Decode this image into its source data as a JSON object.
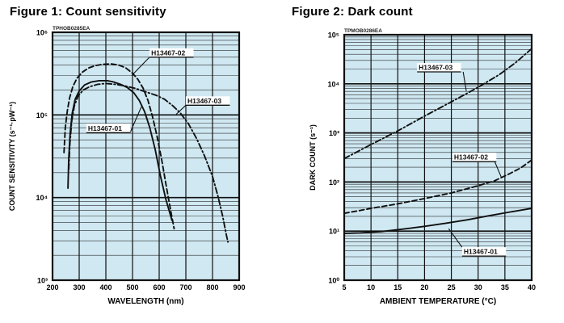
{
  "chart_data": [
    {
      "type": "line",
      "title": "Figure 1: Count sensitivity",
      "code": "TPHOB0285EA",
      "xlabel": "WAVELENGTH (nm)",
      "ylabel": "COUNT SENSITIVITY (s⁻¹·pW⁻¹)",
      "x_range": [
        200,
        900
      ],
      "x_ticks": [
        200,
        300,
        400,
        500,
        600,
        700,
        800,
        900
      ],
      "y_log_range": [
        3,
        6
      ],
      "y_tick_labels": [
        "10³",
        "10⁴",
        "10⁵",
        "10⁶"
      ],
      "grid": "log-minor",
      "bg_color": "#cfe8f2",
      "line_color": "#111111",
      "series": [
        {
          "name": "H13467-01",
          "style": "solid",
          "points": [
            [
              258,
              13000
            ],
            [
              261,
              30000
            ],
            [
              266,
              60000
            ],
            [
              274,
              105000
            ],
            [
              285,
              155000
            ],
            [
              300,
              195000
            ],
            [
              320,
              230000
            ],
            [
              345,
              250000
            ],
            [
              375,
              260000
            ],
            [
              405,
              260000
            ],
            [
              430,
              250000
            ],
            [
              455,
              235000
            ],
            [
              480,
              215000
            ],
            [
              505,
              185000
            ],
            [
              525,
              150000
            ],
            [
              545,
              110000
            ],
            [
              565,
              70000
            ],
            [
              585,
              38000
            ],
            [
              605,
              18000
            ],
            [
              625,
              9500
            ],
            [
              648,
              5300
            ]
          ]
        },
        {
          "name": "H13467-02",
          "style": "dashed",
          "points": [
            [
              243,
              35000
            ],
            [
              248,
              70000
            ],
            [
              255,
              110000
            ],
            [
              264,
              160000
            ],
            [
              276,
              220000
            ],
            [
              292,
              280000
            ],
            [
              312,
              330000
            ],
            [
              335,
              370000
            ],
            [
              360,
              395000
            ],
            [
              390,
              410000
            ],
            [
              420,
              415000
            ],
            [
              450,
              400000
            ],
            [
              475,
              370000
            ],
            [
              500,
              320000
            ],
            [
              520,
              270000
            ],
            [
              540,
              210000
            ],
            [
              558,
              150000
            ],
            [
              575,
              95000
            ],
            [
              592,
              55000
            ],
            [
              610,
              28000
            ],
            [
              628,
              13000
            ],
            [
              645,
              6500
            ],
            [
              656,
              4200
            ]
          ]
        },
        {
          "name": "H13467-03",
          "style": "dashdot",
          "points": [
            [
              261,
              22000
            ],
            [
              265,
              45000
            ],
            [
              272,
              85000
            ],
            [
              282,
              130000
            ],
            [
              296,
              170000
            ],
            [
              315,
              200000
            ],
            [
              340,
              220000
            ],
            [
              370,
              235000
            ],
            [
              400,
              240000
            ],
            [
              435,
              235000
            ],
            [
              470,
              225000
            ],
            [
              510,
              210000
            ],
            [
              550,
              190000
            ],
            [
              590,
              172000
            ],
            [
              620,
              155000
            ],
            [
              650,
              130000
            ],
            [
              680,
              105000
            ],
            [
              710,
              78000
            ],
            [
              740,
              52000
            ],
            [
              770,
              32000
            ],
            [
              800,
              18000
            ],
            [
              820,
              10500
            ],
            [
              838,
              6000
            ],
            [
              852,
              3500
            ],
            [
              858,
              2900
            ]
          ]
        }
      ],
      "annotations": [
        {
          "text": "H13467-02",
          "label_x": 564,
          "label_v": 500000.0,
          "leader": [
            [
              564,
              500000.0
            ],
            [
              497,
              300000.0
            ]
          ]
        },
        {
          "text": "H13467-03",
          "label_x": 700,
          "label_v": 131000.0,
          "leader": [
            [
              700,
              131000.0
            ],
            [
              664,
              102000.0
            ]
          ]
        },
        {
          "text": "H13467-01",
          "label_x": 327,
          "label_v": 61000.0,
          "leader": [
            [
              491,
              61000.0
            ],
            [
              533,
              125000.0
            ]
          ]
        }
      ]
    },
    {
      "type": "line",
      "title": "Figure 2: Dark count",
      "code": "TPMOB0286EA",
      "xlabel": "AMBIENT TEMPERATURE (°C)",
      "ylabel": "DARK COUNT (s⁻¹)",
      "x_range": [
        5,
        40
      ],
      "x_ticks": [
        5,
        10,
        15,
        20,
        25,
        30,
        35,
        40
      ],
      "y_log_range": [
        0,
        5
      ],
      "y_tick_labels": [
        "10⁰",
        "10¹",
        "10²",
        "10³",
        "10⁴",
        "10⁵"
      ],
      "grid": "log-minor",
      "bg_color": "#cfe8f2",
      "line_color": "#111111",
      "series": [
        {
          "name": "H13467-01",
          "style": "solid",
          "points": [
            [
              5,
              9
            ],
            [
              8,
              9.2
            ],
            [
              12,
              9.8
            ],
            [
              16,
              11
            ],
            [
              20,
              12.5
            ],
            [
              24,
              14.5
            ],
            [
              28,
              17
            ],
            [
              32,
              20.5
            ],
            [
              36,
              24.5
            ],
            [
              40,
              29
            ]
          ]
        },
        {
          "name": "H13467-02",
          "style": "dashed",
          "points": [
            [
              5,
              23
            ],
            [
              10,
              29
            ],
            [
              15,
              36
            ],
            [
              20,
              46
            ],
            [
              25,
              60
            ],
            [
              30,
              84
            ],
            [
              33,
              105
            ],
            [
              36,
              150
            ],
            [
              38,
              195
            ],
            [
              40,
              280
            ]
          ]
        },
        {
          "name": "H13467-03",
          "style": "dashdot",
          "points": [
            [
              5,
              300
            ],
            [
              10,
              580
            ],
            [
              15,
              1100
            ],
            [
              20,
              2200
            ],
            [
              25,
              4300
            ],
            [
              30,
              8500
            ],
            [
              34,
              15500
            ],
            [
              37,
              27000
            ],
            [
              40,
              52000
            ]
          ]
        }
      ],
      "annotations": [
        {
          "text": "H13467-03",
          "label_x": 18.6,
          "label_v": 17500.0,
          "leader": [
            [
              27.2,
              17500.0
            ],
            [
              27.8,
              7100.0
            ]
          ]
        },
        {
          "text": "H13467-02",
          "label_x": 25.2,
          "label_v": 260.0,
          "leader": [
            [
              33.1,
              260.0
            ],
            [
              34.3,
              127.0
            ]
          ]
        },
        {
          "text": "H13467-01",
          "label_x": 27.0,
          "label_v": 3.1,
          "leader": [
            [
              27.0,
              4.7
            ],
            [
              24.5,
              11.2
            ]
          ]
        }
      ]
    }
  ]
}
